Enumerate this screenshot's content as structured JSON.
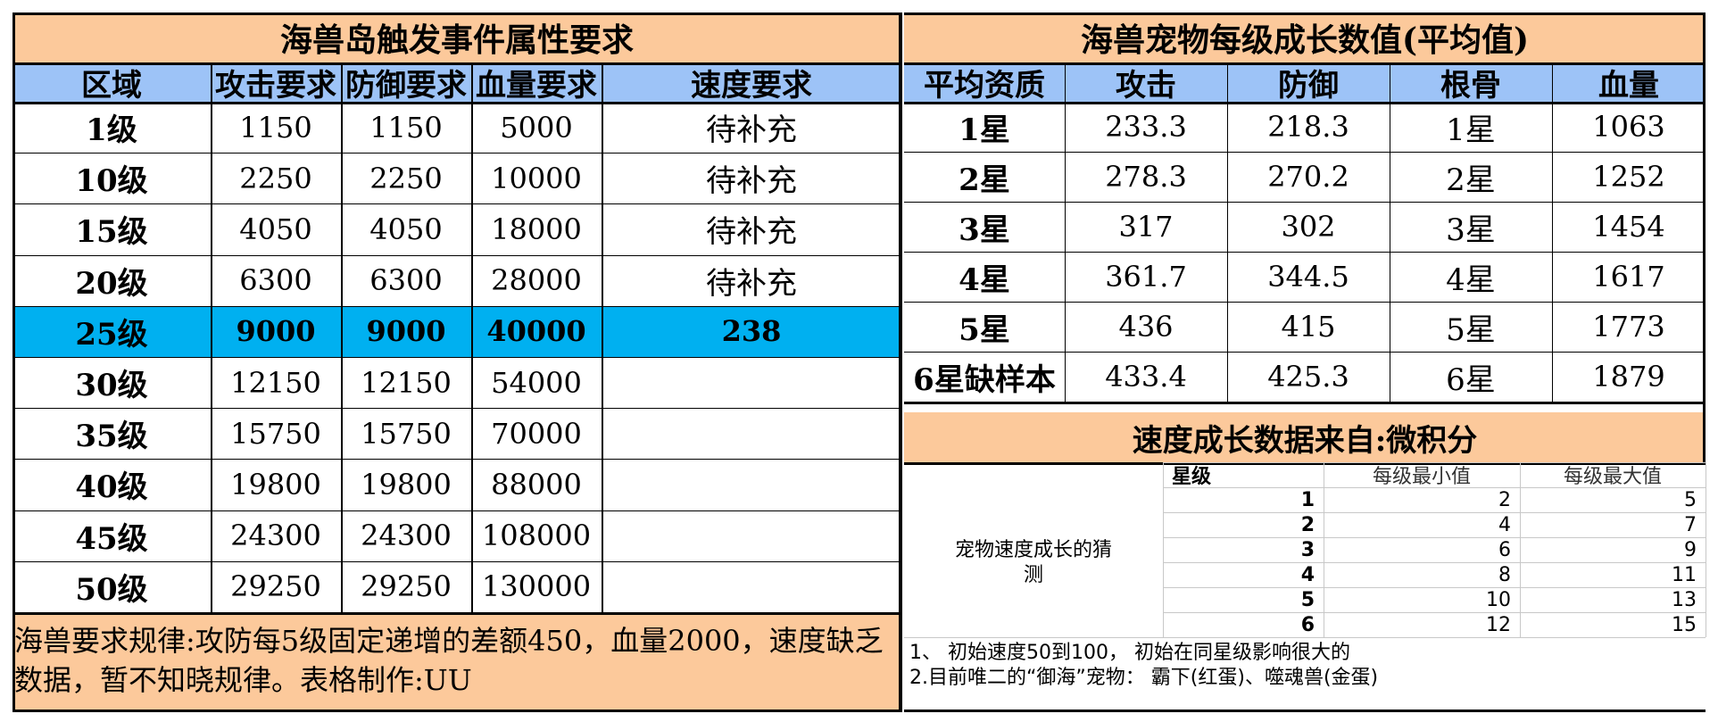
{
  "left": {
    "title": "海兽岛触发事件属性要求",
    "headers": [
      "区域",
      "攻击要求",
      "防御要求",
      "血量要求",
      "速度要求"
    ],
    "rows": [
      [
        "1级",
        "1150",
        "1150",
        "5000",
        "待补充"
      ],
      [
        "10级",
        "2250",
        "2250",
        "10000",
        "待补充"
      ],
      [
        "15级",
        "4050",
        "4050",
        "18000",
        "待补充"
      ],
      [
        "20级",
        "6300",
        "6300",
        "28000",
        "待补充"
      ],
      [
        "25级",
        "9000",
        "9000",
        "40000",
        "238"
      ],
      [
        "30级",
        "12150",
        "12150",
        "54000",
        ""
      ],
      [
        "35级",
        "15750",
        "15750",
        "70000",
        ""
      ],
      [
        "40级",
        "19800",
        "19800",
        "88000",
        ""
      ],
      [
        "45级",
        "24300",
        "24300",
        "108000",
        ""
      ],
      [
        "50级",
        "29250",
        "29250",
        "130000",
        ""
      ]
    ],
    "highlight_color": "#00b0f0",
    "note": "海兽要求规律:攻防每5级固定递增的差额450，血量2000，速度缺乏数据，暂不知晓规律。表格制作:UU"
  },
  "right": {
    "title": "海兽宠物每级成长数值(平均值)",
    "headers": [
      "平均资质",
      "攻击",
      "防御",
      "根骨",
      "血量"
    ],
    "rows": [
      [
        "1星",
        "233.3",
        "218.3",
        "1星",
        "1063"
      ],
      [
        "2星",
        "278.3",
        "270.2",
        "2星",
        "1252"
      ],
      [
        "3星",
        "317",
        "302",
        "3星",
        "1454"
      ],
      [
        "4星",
        "361.7",
        "344.5",
        "4星",
        "1617"
      ],
      [
        "5星",
        "436",
        "415",
        "5星",
        "1773"
      ],
      [
        "6星缺样本",
        "433.4",
        "425.3",
        "6星",
        "1879"
      ]
    ],
    "speed_title": "速度成长数据来自:微积分",
    "speed": {
      "label": "宠物速度成长的猜测",
      "headers": [
        "星级",
        "每级最小值",
        "每级最大值"
      ],
      "rows": [
        [
          "1",
          "2",
          "5"
        ],
        [
          "2",
          "4",
          "7"
        ],
        [
          "3",
          "6",
          "9"
        ],
        [
          "4",
          "8",
          "11"
        ],
        [
          "5",
          "10",
          "13"
        ],
        [
          "6",
          "12",
          "15"
        ]
      ],
      "note1": "1、 初始速度50到100， 初始在同星级影响很大的",
      "note2": "2.目前唯二的“御海”宠物： 霸下(红蛋)、噬魂兽(金蛋)"
    }
  },
  "colors": {
    "peach": "#fcc99b",
    "blue_header": "#9dc3f7"
  }
}
